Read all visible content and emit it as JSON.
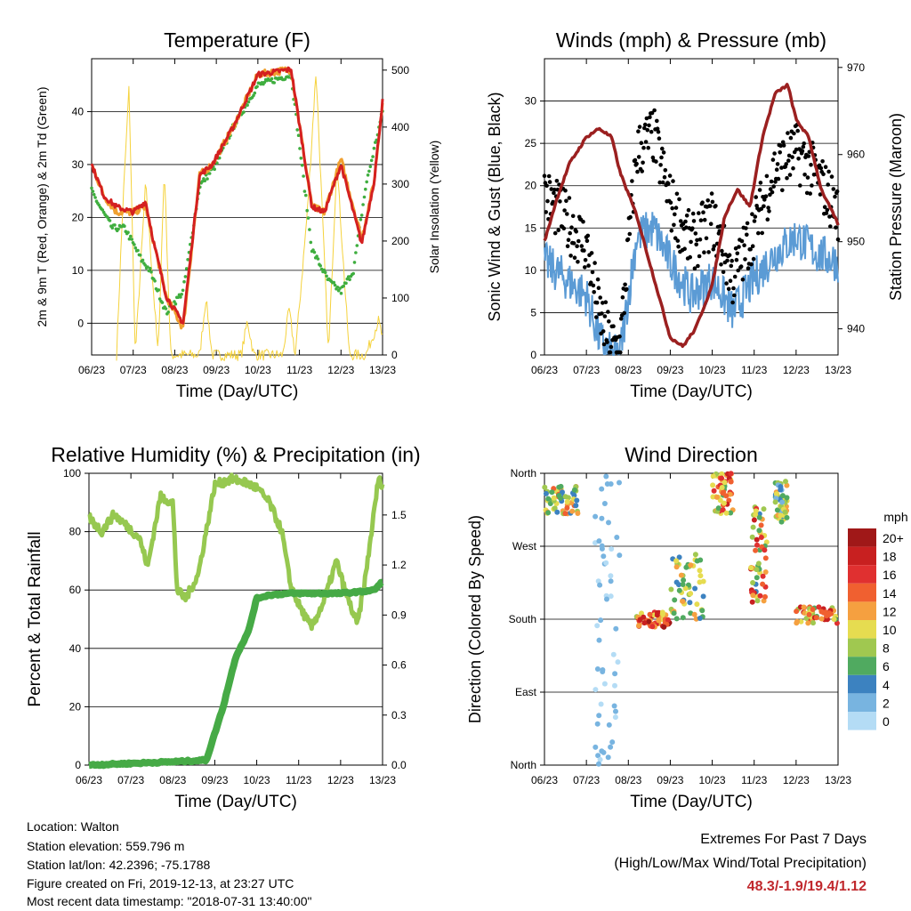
{
  "chart_data": [
    {
      "type": "line",
      "title": "Temperature (F)",
      "xlabel": "Time (Day/UTC)",
      "ylabel": "2m & 9m T (Red, Orange) & 2m Td (Green)",
      "y2label": "Solar Insolation (Yellow)",
      "x_ticks": [
        "06/23",
        "07/23",
        "08/23",
        "09/23",
        "10/23",
        "11/23",
        "12/23",
        "13/23"
      ],
      "ylim": [
        -6,
        50
      ],
      "y_ticks": [
        0,
        10,
        20,
        30,
        40
      ],
      "y2lim": [
        0,
        520
      ],
      "y2_ticks": [
        0,
        100,
        200,
        300,
        400,
        500
      ],
      "grid": true,
      "colors": {
        "t2m": "#d42020",
        "t9m": "#f0a030",
        "td2m": "#3fae3f",
        "solar": "#f5d23c"
      },
      "series": [
        {
          "axis": "left",
          "x": [
            0,
            0.3,
            0.6,
            1.0,
            1.3,
            1.5,
            1.8,
            2.2,
            2.6,
            2.9,
            3.4,
            4.0,
            4.8,
            5.3,
            5.6,
            6.0,
            6.5,
            6.8,
            7.0
          ],
          "values": [
            30,
            24,
            22,
            21,
            23,
            15,
            5,
            0,
            28,
            30,
            37,
            47,
            48,
            22,
            21,
            30,
            15,
            27,
            42
          ]
        },
        {
          "axis": "left",
          "x": [
            0,
            0.3,
            0.6,
            1.0,
            1.3,
            1.5,
            1.8,
            2.2,
            2.6,
            2.9,
            3.4,
            4.0,
            4.8,
            5.3,
            5.6,
            6.0,
            6.5,
            6.8,
            7.0
          ],
          "values": [
            30,
            24,
            21,
            21,
            22,
            15,
            5,
            -1,
            28,
            30,
            37,
            47,
            48,
            22,
            21,
            31,
            16,
            27,
            42
          ]
        },
        {
          "axis": "left",
          "x": [
            0,
            0.2,
            0.5,
            0.8,
            1.2,
            1.4,
            1.8,
            2.2,
            2.6,
            3.0,
            3.4,
            4.0,
            4.8,
            5.3,
            5.7,
            6.0,
            6.3,
            6.6,
            7.0
          ],
          "values": [
            25,
            22,
            18,
            18,
            12,
            10,
            2,
            6,
            26,
            30,
            37,
            45,
            47,
            14,
            8,
            6,
            10,
            26,
            40
          ]
        },
        {
          "axis": "right",
          "x": [
            0.6,
            0.75,
            0.9,
            1.05,
            1.3,
            1.6,
            1.75,
            1.9,
            2.6,
            2.75,
            2.9,
            3.6,
            3.75,
            3.9,
            4.6,
            4.75,
            4.9,
            5.2,
            5.4,
            5.7,
            5.9,
            6.2,
            6.6,
            6.9,
            7.0
          ],
          "values": [
            0,
            260,
            470,
            0,
            300,
            0,
            330,
            0,
            0,
            100,
            0,
            0,
            60,
            0,
            0,
            80,
            0,
            260,
            500,
            0,
            340,
            0,
            0,
            60,
            30
          ]
        }
      ]
    },
    {
      "type": "line",
      "title": "Winds (mph) & Pressure (mb)",
      "xlabel": "Time (Day/UTC)",
      "ylabel": "Sonic Wind & Gust (Blue, Black)",
      "y2label": "Station Pressure (Maroon)",
      "x_ticks": [
        "06/23",
        "07/23",
        "08/23",
        "09/23",
        "10/23",
        "11/23",
        "12/23",
        "13/23"
      ],
      "ylim": [
        0,
        35
      ],
      "y_ticks": [
        0,
        5,
        10,
        15,
        20,
        25,
        30
      ],
      "y2lim": [
        937,
        971
      ],
      "y2_ticks": [
        940,
        950,
        960,
        970
      ],
      "grid": true,
      "colors": {
        "wind": "#5b9bd5",
        "gust": "#000000",
        "pressure": "#9b2020"
      },
      "series": [
        {
          "axis": "left",
          "x": [
            0,
            0.5,
            1.0,
            1.3,
            1.6,
            1.8,
            2.2,
            2.6,
            3.0,
            3.5,
            4.0,
            4.5,
            5.0,
            5.5,
            6.0,
            6.5,
            7.0
          ],
          "values": [
            11,
            9,
            7,
            2,
            0,
            0,
            14,
            15,
            11,
            7,
            9,
            5,
            9,
            12,
            14,
            12,
            11
          ]
        },
        {
          "axis": "left",
          "x": [
            0,
            0.5,
            1.0,
            1.3,
            1.6,
            1.8,
            2.2,
            2.6,
            3.0,
            3.5,
            4.0,
            4.5,
            5.0,
            5.5,
            6.0,
            6.5,
            7.0
          ],
          "values": [
            19,
            16,
            13,
            5,
            1,
            1,
            24,
            26,
            18,
            13,
            16,
            9,
            15,
            22,
            24,
            21,
            17
          ]
        },
        {
          "axis": "right",
          "x": [
            0,
            0.3,
            0.6,
            1.0,
            1.3,
            1.6,
            1.8,
            2.2,
            2.6,
            3.0,
            3.3,
            3.6,
            4.0,
            4.3,
            4.6,
            4.9,
            5.2,
            5.5,
            5.8,
            6.0,
            6.3,
            6.6,
            7.0
          ],
          "values": [
            950,
            955,
            959,
            962,
            963,
            962,
            958,
            953,
            946,
            939,
            938,
            940,
            945,
            953,
            956,
            954,
            962,
            967,
            968,
            964,
            962,
            956,
            952
          ]
        }
      ]
    },
    {
      "type": "line",
      "title": "Relative Humidity (%) & Precipitation (in)",
      "xlabel": "Time (Day/UTC)",
      "ylabel": "Percent & Total Rainfall",
      "x_ticks": [
        "06/23",
        "07/23",
        "08/23",
        "09/23",
        "10/23",
        "11/23",
        "12/23",
        "13/23"
      ],
      "ylim": [
        0,
        100
      ],
      "y_ticks": [
        0,
        20,
        40,
        60,
        80,
        100
      ],
      "y2lim": [
        0,
        1.75
      ],
      "y2_ticks": [
        "0.0",
        "0.3",
        "0.6",
        "0.9",
        "1.2",
        "1.5"
      ],
      "grid": true,
      "colors": {
        "rh": "#96c850",
        "precip": "#46aa46"
      },
      "series": [
        {
          "axis": "left",
          "x": [
            0,
            0.3,
            0.6,
            0.9,
            1.2,
            1.4,
            1.7,
            2.0,
            2.1,
            2.3,
            2.6,
            3.0,
            3.4,
            3.7,
            4.0,
            4.3,
            4.6,
            4.8,
            5.0,
            5.3,
            5.6,
            5.9,
            6.1,
            6.4,
            6.6,
            6.9,
            7.0
          ],
          "values": [
            85,
            80,
            86,
            82,
            78,
            68,
            92,
            90,
            60,
            57,
            65,
            96,
            98,
            97,
            95,
            90,
            80,
            62,
            55,
            47,
            56,
            70,
            60,
            48,
            65,
            98,
            96
          ]
        },
        {
          "axis": "right",
          "x": [
            0,
            1.0,
            2.0,
            2.8,
            3.2,
            3.5,
            3.8,
            4.0,
            4.3,
            4.8,
            5.5,
            6.0,
            6.5,
            6.8,
            7.0
          ],
          "values": [
            0.0,
            0.01,
            0.02,
            0.03,
            0.35,
            0.65,
            0.8,
            1.0,
            1.02,
            1.03,
            1.03,
            1.03,
            1.04,
            1.05,
            1.1
          ]
        }
      ]
    },
    {
      "type": "scatter",
      "title": "Wind Direction",
      "xlabel": "Time (Day/UTC)",
      "ylabel": "Direction (Colored By Speed)",
      "x_ticks": [
        "06/23",
        "07/23",
        "08/23",
        "09/23",
        "10/23",
        "11/23",
        "12/23",
        "13/23"
      ],
      "y_categories": [
        "North",
        "East",
        "South",
        "West",
        "North"
      ],
      "ylim": [
        0,
        360
      ],
      "legend_title": "mph",
      "legend_labels": [
        "20+",
        "18",
        "16",
        "14",
        "12",
        "10",
        "8",
        "6",
        "4",
        "2",
        "0"
      ],
      "legend_colors": [
        "#a01818",
        "#c82020",
        "#e03030",
        "#f06030",
        "#f5a040",
        "#e6dc50",
        "#a0c850",
        "#50aa60",
        "#3c82c0",
        "#78b4e0",
        "#b4dcf5"
      ],
      "grid": true,
      "clusters": [
        {
          "x": [
            0.0,
            0.8
          ],
          "dir": [
            310,
            345
          ],
          "speed": [
            3,
            14
          ]
        },
        {
          "x": [
            1.2,
            1.8
          ],
          "dir": [
            0,
            360
          ],
          "speed": [
            0,
            3
          ]
        },
        {
          "x": [
            2.2,
            3.0
          ],
          "dir": [
            170,
            190
          ],
          "speed": [
            8,
            20
          ]
        },
        {
          "x": [
            3.0,
            3.8
          ],
          "dir": [
            180,
            260
          ],
          "speed": [
            4,
            12
          ]
        },
        {
          "x": [
            4.0,
            4.5
          ],
          "dir": [
            310,
            360
          ],
          "speed": [
            6,
            18
          ]
        },
        {
          "x": [
            4.9,
            5.3
          ],
          "dir": [
            200,
            320
          ],
          "speed": [
            4,
            18
          ]
        },
        {
          "x": [
            5.5,
            5.8
          ],
          "dir": [
            300,
            350
          ],
          "speed": [
            2,
            12
          ]
        },
        {
          "x": [
            6.0,
            7.0
          ],
          "dir": [
            175,
            195
          ],
          "speed": [
            6,
            18
          ]
        }
      ]
    }
  ],
  "info": {
    "location": "Location: Walton",
    "elevation": "Station elevation: 559.796 m",
    "latlon": "Station lat/lon: 42.2396; -75.1788",
    "created": "Figure created on Fri, 2019-12-13, at 23:27 UTC",
    "recent": "Most recent data timestamp: \"2018-07-31 13:40:00\""
  },
  "extremes": {
    "title": "Extremes For Past 7 Days",
    "subtitle": "(High/Low/Max Wind/Total Precipitation)",
    "values": "48.3/-1.9/19.4/1.12",
    "value_color": "#c0282d"
  }
}
